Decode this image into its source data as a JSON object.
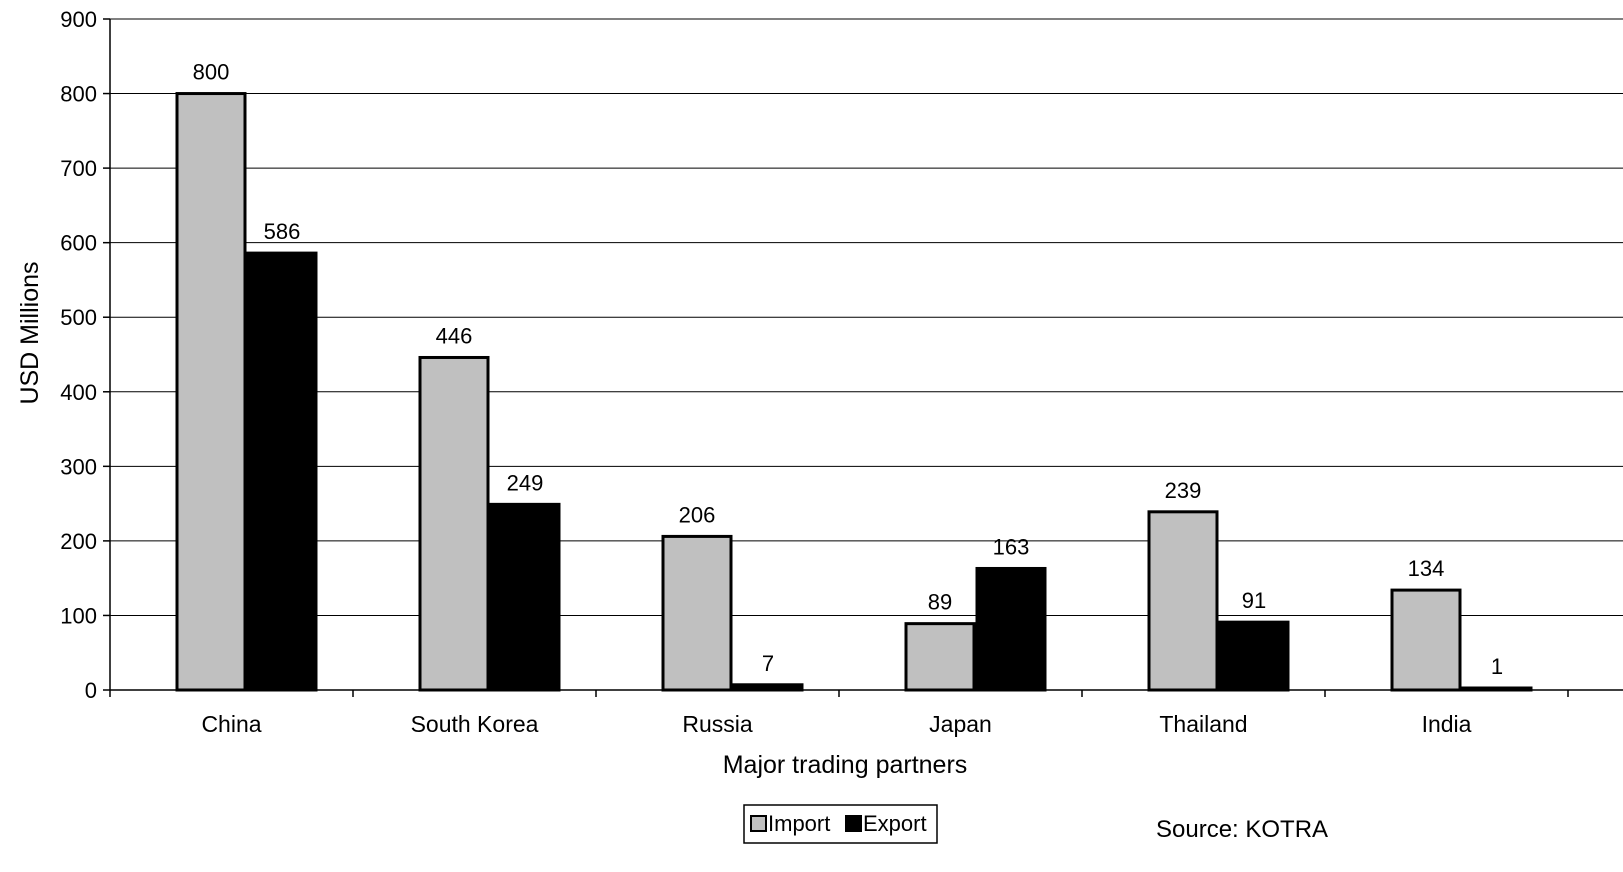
{
  "chart_data": {
    "type": "bar",
    "categories": [
      "China",
      "South Korea",
      "Russia",
      "Japan",
      "Thailand",
      "India"
    ],
    "series": [
      {
        "name": "Import",
        "values": [
          800,
          446,
          206,
          89,
          239,
          134
        ],
        "color": "#c0c0c0"
      },
      {
        "name": "Export",
        "values": [
          586,
          249,
          7,
          163,
          91,
          1
        ],
        "color": "#000000"
      }
    ],
    "xlabel": "Major trading partners",
    "ylabel": "USD Millions",
    "ylim": [
      0,
      900
    ],
    "yticks": [
      0,
      100,
      200,
      300,
      400,
      500,
      600,
      700,
      800,
      900
    ],
    "grid": true,
    "legend_position": "bottom-center",
    "annotation": "Source: KOTRA"
  }
}
